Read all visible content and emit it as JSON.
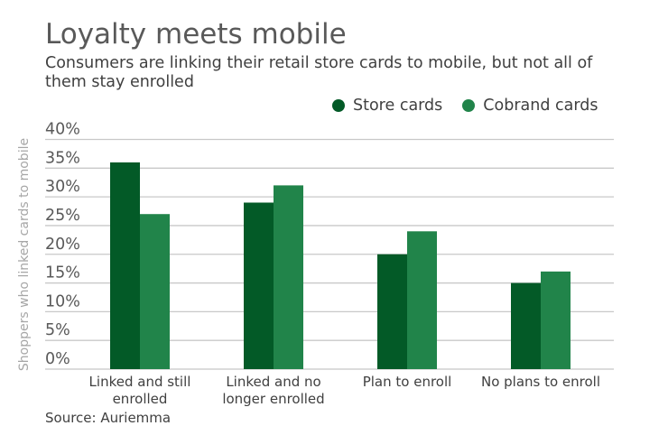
{
  "chart_data": {
    "type": "bar",
    "title": "Loyalty meets mobile",
    "subtitle": "Consumers are linking their retail store cards to mobile, but not all of them stay enrolled",
    "ylabel": "Shoppers who linked cards to mobile",
    "xlabel": "",
    "ylim": [
      0,
      40
    ],
    "yticks": [
      "0%",
      "5%",
      "10%",
      "15%",
      "20%",
      "25%",
      "30%",
      "35%",
      "40%"
    ],
    "grid": true,
    "legend_position": "top-right",
    "categories": [
      [
        "Linked and still",
        "enrolled"
      ],
      [
        "Linked and no",
        "longer enrolled"
      ],
      [
        "Plan to enroll"
      ],
      [
        "No plans to enroll"
      ]
    ],
    "series": [
      {
        "name": "Store cards",
        "color": "#035a27",
        "values": [
          36,
          29,
          20,
          15
        ]
      },
      {
        "name": "Cobrand cards",
        "color": "#21844a",
        "values": [
          27,
          32,
          24,
          17
        ]
      }
    ],
    "source": "Source: Auriemma"
  }
}
